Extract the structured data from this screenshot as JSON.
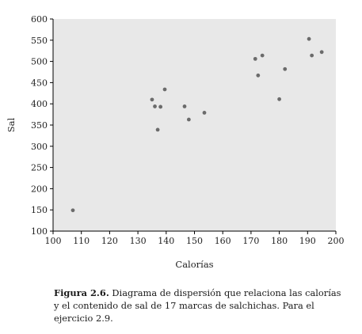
{
  "chart_data": {
    "type": "scatter",
    "xlabel": "Calorías",
    "ylabel": "Sal",
    "xlim": [
      100,
      200
    ],
    "ylim": [
      100,
      600
    ],
    "xticks": [
      100,
      110,
      120,
      130,
      140,
      150,
      160,
      170,
      180,
      190,
      200
    ],
    "yticks": [
      100,
      150,
      200,
      250,
      300,
      350,
      400,
      450,
      500,
      550,
      600
    ],
    "grid": false,
    "colors": {
      "plot_background": "#e8e8e8",
      "point": "#6b6b6b",
      "axis": "#000000"
    },
    "points": [
      {
        "x": 107,
        "y": 149
      },
      {
        "x": 135,
        "y": 410
      },
      {
        "x": 136,
        "y": 394
      },
      {
        "x": 137,
        "y": 339
      },
      {
        "x": 138,
        "y": 393
      },
      {
        "x": 139.5,
        "y": 434
      },
      {
        "x": 146.5,
        "y": 394
      },
      {
        "x": 148,
        "y": 363
      },
      {
        "x": 153.5,
        "y": 379
      },
      {
        "x": 171.5,
        "y": 506
      },
      {
        "x": 172.5,
        "y": 467
      },
      {
        "x": 174,
        "y": 514
      },
      {
        "x": 180,
        "y": 411
      },
      {
        "x": 182,
        "y": 482
      },
      {
        "x": 190.5,
        "y": 553
      },
      {
        "x": 191.5,
        "y": 514
      },
      {
        "x": 195,
        "y": 522
      }
    ]
  },
  "caption": {
    "label": "Figura 2.6.",
    "text": " Diagrama de dispersión que relaciona las calorías y el contenido de sal de 17 marcas de salchichas. Para el ejercicio 2.9."
  }
}
